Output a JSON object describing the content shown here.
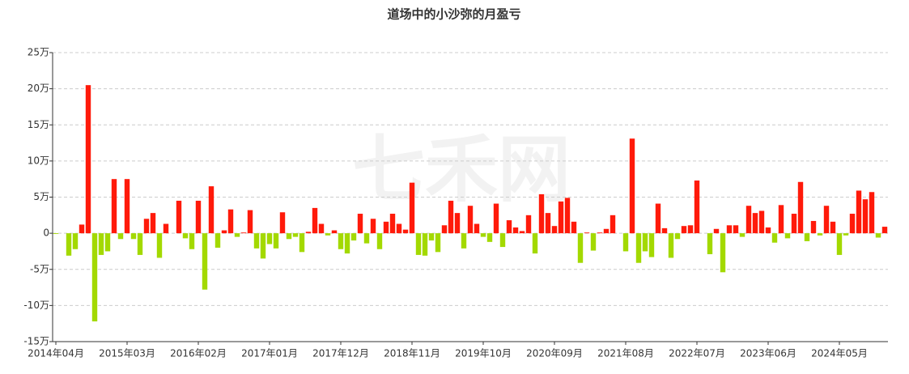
{
  "chart_data": {
    "type": "bar",
    "title": "道场中的小沙弥的月盈亏",
    "watermark": "七禾网",
    "categories": [
      "2014年04月",
      null,
      null,
      null,
      null,
      null,
      null,
      null,
      null,
      null,
      null,
      "2015年03月",
      null,
      null,
      null,
      null,
      null,
      null,
      null,
      null,
      null,
      null,
      "2016年02月",
      null,
      null,
      null,
      null,
      null,
      null,
      null,
      null,
      null,
      null,
      "2017年01月",
      null,
      null,
      null,
      null,
      null,
      null,
      null,
      null,
      null,
      null,
      "2017年12月",
      null,
      null,
      null,
      null,
      null,
      null,
      null,
      null,
      null,
      null,
      "2018年11月",
      null,
      null,
      null,
      null,
      null,
      null,
      null,
      null,
      null,
      null,
      "2019年10月",
      null,
      null,
      null,
      null,
      null,
      null,
      null,
      null,
      null,
      null,
      "2020年09月",
      null,
      null,
      null,
      null,
      null,
      null,
      null,
      null,
      null,
      null,
      "2021年08月",
      null,
      null,
      null,
      null,
      null,
      null,
      null,
      null,
      null,
      null,
      "2022年07月",
      null,
      null,
      null,
      null,
      null,
      null,
      null,
      null,
      null,
      null,
      "2023年06月",
      null,
      null,
      null,
      null,
      null,
      null,
      null,
      null,
      null,
      null,
      "2024年05月",
      null,
      null,
      null,
      null,
      null,
      null,
      null
    ],
    "values": [
      -0.1,
      0,
      -3.1,
      -2.2,
      1.2,
      20.5,
      -12.2,
      -3,
      -2.5,
      7.5,
      -0.8,
      7.5,
      -0.8,
      -3,
      2,
      2.8,
      -3.4,
      1.3,
      0,
      4.5,
      -0.7,
      -2.2,
      4.5,
      -7.8,
      6.5,
      -2,
      0.4,
      3.3,
      -0.5,
      0.1,
      3.2,
      -2.1,
      -3.5,
      -1.5,
      -2.1,
      2.9,
      -0.8,
      -0.5,
      -2.6,
      0.2,
      3.5,
      1.3,
      -0.3,
      0.4,
      -2.2,
      -2.8,
      -1,
      2.7,
      -1.4,
      2,
      -2.2,
      1.6,
      2.7,
      1.3,
      0.5,
      7,
      -3,
      -3.1,
      -1,
      -2.6,
      1.1,
      4.5,
      2.8,
      -2.1,
      3.8,
      1.3,
      -0.5,
      -1.2,
      4.1,
      -1.9,
      1.8,
      0.8,
      0.3,
      2.5,
      -2.8,
      5.4,
      2.8,
      1,
      4.4,
      4.9,
      1.6,
      -4.1,
      0.1,
      -2.4,
      0.1,
      0.6,
      2.5,
      0,
      -2.5,
      13.1,
      -4.1,
      -2.5,
      -3.3,
      4.1,
      0.7,
      -3.4,
      -0.8,
      1,
      1.1,
      7.3,
      0,
      -2.9,
      0.6,
      -5.4,
      1.1,
      1.1,
      -0.5,
      3.8,
      2.8,
      3.1,
      0.8,
      -1.3,
      3.9,
      -0.7,
      2.7,
      7.1,
      -1.1,
      1.7,
      -0.3,
      3.8,
      1.6,
      -3,
      -0.3,
      2.7,
      5.9,
      4.7,
      5.7,
      -0.6,
      0.9
    ],
    "color_positive": "#ff1a0a",
    "color_negative": "#a3d900",
    "ylim": [
      -15,
      25
    ],
    "yticks": [
      {
        "value": -15,
        "label": "-15万"
      },
      {
        "value": -10,
        "label": "-10万"
      },
      {
        "value": -5,
        "label": "-5万"
      },
      0,
      {
        "value": 5,
        "label": "5万"
      },
      {
        "value": 10,
        "label": "10万"
      },
      {
        "value": 15,
        "label": "15万"
      },
      {
        "value": 20,
        "label": "20万"
      },
      {
        "value": 25,
        "label": "25万"
      }
    ],
    "grid": true
  }
}
